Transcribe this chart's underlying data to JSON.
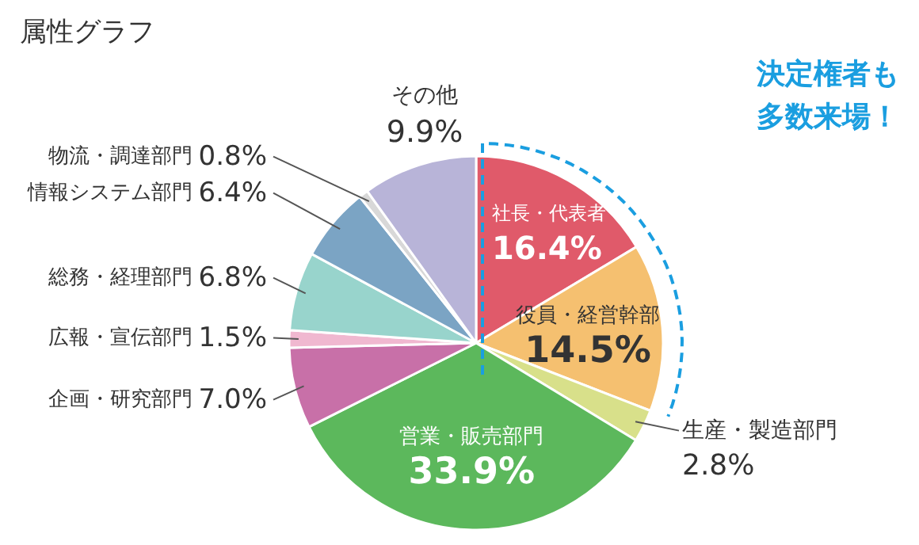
{
  "chart_data": {
    "type": "pie",
    "title": "属性グラフ",
    "categories": [
      "社長・代表者",
      "役員・経営幹部",
      "生産・製造部門",
      "営業・販売部門",
      "企画・研究部門",
      "広報・宣伝部門",
      "総務・経理部門",
      "情報システム部門",
      "物流・調達部門",
      "その他"
    ],
    "values": [
      16.4,
      14.5,
      2.8,
      33.9,
      7.0,
      1.5,
      6.8,
      6.4,
      0.8,
      9.9
    ],
    "colors": [
      "#e05a6a",
      "#f5c070",
      "#d8e08a",
      "#5cb85c",
      "#c870a8",
      "#f0b8d0",
      "#98d4cc",
      "#7ba4c4",
      "#d8d8d8",
      "#b8b4d8"
    ],
    "value_labels": [
      "16.4%",
      "14.5%",
      "2.8%",
      "33.9%",
      "7.0%",
      "1.5%",
      "6.8%",
      "6.4%",
      "0.8%",
      "9.9%"
    ],
    "annotations": [
      "決定権者も多数来場！"
    ]
  }
}
